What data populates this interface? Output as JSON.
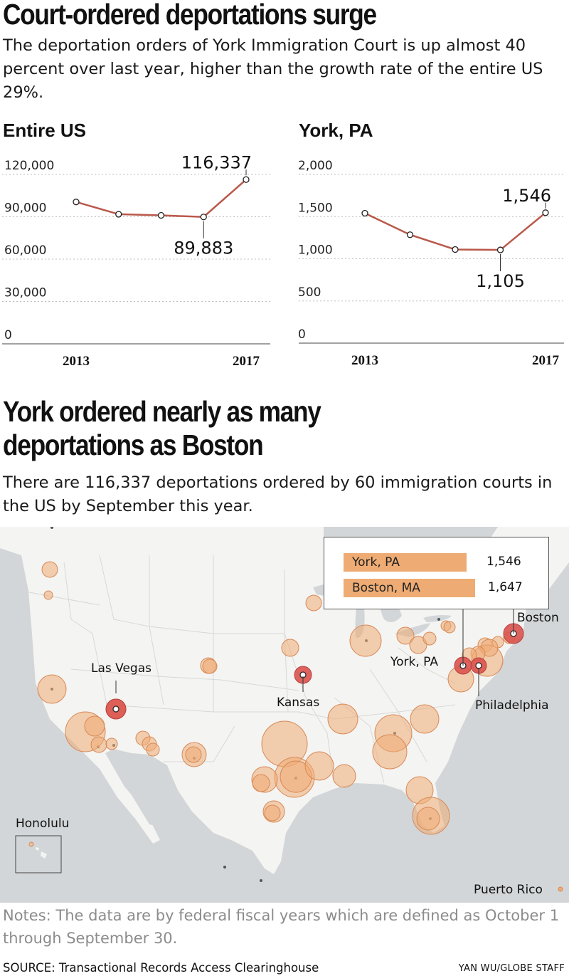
{
  "section1": {
    "headline": "Court-ordered deportations surge",
    "dek": "The deportation orders of York Immigration Court is up almost 40 percent over last year, higher than the growth rate of the entire US 29%."
  },
  "chart_data": [
    {
      "type": "line",
      "title": "Entire US",
      "x": [
        2013,
        2014,
        2015,
        2016,
        2017
      ],
      "values": [
        100500,
        91800,
        91000,
        89883,
        116337
      ],
      "x_tick_labels": [
        "2013",
        "2017"
      ],
      "y_ticks": [
        0,
        30000,
        60000,
        90000,
        120000
      ],
      "y_tick_labels": [
        "0",
        "30,000",
        "60,000",
        "90,000",
        "120,000"
      ],
      "ylim": [
        0,
        120000
      ],
      "annotations": [
        {
          "x": 2017,
          "value": 116337,
          "label": "116,337",
          "position": "above"
        },
        {
          "x": 2016,
          "value": 89883,
          "label": "89,883",
          "position": "below"
        }
      ],
      "line_color": "#b9584a",
      "grid": "dotted-horizontal"
    },
    {
      "type": "line",
      "title": "York, PA",
      "x": [
        2013,
        2014,
        2015,
        2016,
        2017
      ],
      "values": [
        1540,
        1285,
        1110,
        1105,
        1546
      ],
      "x_tick_labels": [
        "2013",
        "2017"
      ],
      "y_ticks": [
        0,
        500,
        1000,
        1500,
        2000
      ],
      "y_tick_labels": [
        "0",
        "500",
        "1,000",
        "1,500",
        "2,000"
      ],
      "ylim": [
        0,
        2000
      ],
      "annotations": [
        {
          "x": 2017,
          "value": 1546,
          "label": "1,546",
          "position": "above"
        },
        {
          "x": 2016,
          "value": 1105,
          "label": "1,105",
          "position": "below"
        }
      ],
      "line_color": "#b9584a",
      "grid": "dotted-horizontal"
    }
  ],
  "section2": {
    "headline_line1": "York ordered nearly as many",
    "headline_line2": "deportations as Boston",
    "dek": "There are 116,337 deportations ordered by 60 immigration courts in the US by September this year."
  },
  "map": {
    "background": "#d3d6d8",
    "land_color": "#f4f4f2",
    "bubble_color": "#eeac74",
    "highlight_color": "#d9534f",
    "tooltip": {
      "rows": [
        {
          "name": "York, PA",
          "value": "1,546",
          "count": 1546
        },
        {
          "name": "Boston, MA",
          "value": "1,647",
          "count": 1647
        }
      ]
    },
    "labels": {
      "las_vegas": "Las Vegas",
      "kansas": "Kansas",
      "york": "York, PA",
      "philadelphia": "Philadelphia",
      "boston": "Boston",
      "honolulu": "Honolulu",
      "puerto_rico": "Puerto Rico"
    }
  },
  "notes": "Notes: The data are by federal fiscal years which are defined as October 1 through September 30.",
  "source": "SOURCE: Transactional Records Access Clearinghouse",
  "credit": "YAN WU/GLOBE STAFF"
}
